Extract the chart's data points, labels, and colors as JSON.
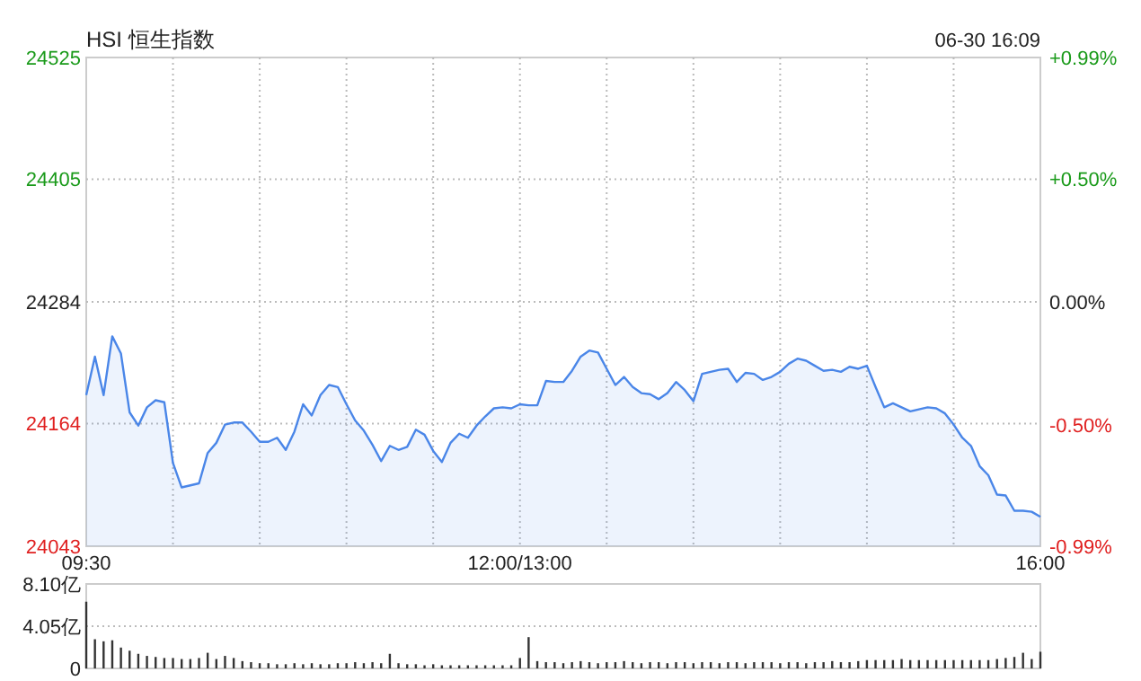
{
  "chart_data": [
    {
      "type": "area",
      "title": "HSI 恒生指数",
      "annotations": [
        "06-30 16:09"
      ],
      "color": "#4a86e8",
      "grid": true,
      "categories": [
        "09:30",
        null,
        null,
        null,
        null,
        null,
        null,
        null,
        null,
        null,
        null,
        null,
        null,
        null,
        null,
        null,
        null,
        null,
        null,
        null,
        null,
        null,
        null,
        null,
        null,
        null,
        null,
        null,
        null,
        null,
        null,
        null,
        null,
        null,
        null,
        null,
        null,
        null,
        null,
        null,
        null,
        null,
        null,
        null,
        null,
        null,
        null,
        null,
        null,
        null,
        "12:00/13:00",
        null,
        null,
        null,
        null,
        null,
        null,
        null,
        null,
        null,
        null,
        null,
        null,
        null,
        null,
        null,
        null,
        null,
        null,
        null,
        null,
        null,
        null,
        null,
        null,
        null,
        null,
        null,
        null,
        null,
        null,
        null,
        null,
        null,
        null,
        null,
        null,
        null,
        null,
        null,
        null,
        null,
        null,
        null,
        null,
        null,
        null,
        null,
        null,
        null,
        null,
        null,
        null,
        null,
        null,
        null,
        null,
        null,
        null,
        null,
        "16:00"
      ],
      "values": [
        24192,
        24230,
        24192,
        24250,
        24233,
        24175,
        24162,
        24180,
        24187,
        24185,
        24125,
        24101,
        24103,
        24105,
        24135,
        24145,
        24163,
        24165,
        24165,
        24156,
        24146,
        24146,
        24150,
        24138,
        24156,
        24183,
        24172,
        24192,
        24202,
        24200,
        24183,
        24167,
        24157,
        24143,
        24127,
        24142,
        24138,
        24141,
        24158,
        24153,
        24137,
        24126,
        24145,
        24154,
        24150,
        24162,
        24171,
        24179,
        24180,
        24179,
        24183,
        24182,
        24182,
        24206,
        24205,
        24205,
        24216,
        24230,
        24236,
        24234,
        24218,
        24202,
        24210,
        24200,
        24194,
        24193,
        24188,
        24194,
        24205,
        24197,
        24186,
        24213,
        24215,
        24217,
        24218,
        24205,
        24214,
        24213,
        24207,
        24210,
        24215,
        24223,
        24228,
        24226,
        24221,
        24216,
        24217,
        24215,
        24220,
        24218,
        24221,
        24200,
        24180,
        24184,
        24180,
        24176,
        24178,
        24180,
        24179,
        24174,
        24163,
        24150,
        24142,
        24122,
        24113,
        24094,
        24093,
        24078,
        24078,
        24077,
        24072
      ],
      "ylim": [
        24043,
        24525
      ],
      "yticks": [
        24043,
        24164,
        24284,
        24405,
        24525
      ],
      "y2lim": [
        -0.99,
        0.99
      ],
      "y2ticks": [
        {
          "value": -0.99,
          "label": "-0.99%"
        },
        {
          "value": -0.5,
          "label": "-0.50%"
        },
        {
          "value": 0,
          "label": "0.00%"
        },
        {
          "value": 0.5,
          "label": "+0.50%"
        },
        {
          "value": 0.99,
          "label": "+0.99%"
        }
      ]
    },
    {
      "type": "bar",
      "color": "#333333",
      "grid": "y",
      "tick_labels": "y",
      "categories": [
        null,
        null,
        null,
        null,
        null,
        null,
        null,
        null,
        null,
        null,
        null,
        null,
        null,
        null,
        null,
        null,
        null,
        null,
        null,
        null,
        null,
        null,
        null,
        null,
        null,
        null,
        null,
        null,
        null,
        null,
        null,
        null,
        null,
        null,
        null,
        null,
        null,
        null,
        null,
        null,
        null,
        null,
        null,
        null,
        null,
        null,
        null,
        null,
        null,
        null,
        null,
        null,
        null,
        null,
        null,
        null,
        null,
        null,
        null,
        null,
        null,
        null,
        null,
        null,
        null,
        null,
        null,
        null,
        null,
        null,
        null,
        null,
        null,
        null,
        null,
        null,
        null,
        null,
        null,
        null,
        null,
        null,
        null,
        null,
        null,
        null,
        null,
        null,
        null,
        null,
        null,
        null,
        null,
        null,
        null,
        null,
        null,
        null,
        null,
        null,
        null,
        null,
        null,
        null,
        null,
        null,
        null,
        null,
        null,
        null,
        null
      ],
      "values": [
        6.4,
        2.8,
        2.6,
        2.7,
        2.0,
        1.7,
        1.4,
        1.2,
        1.1,
        1.0,
        1.0,
        0.9,
        0.9,
        1.0,
        1.5,
        0.9,
        1.2,
        1.0,
        0.7,
        0.6,
        0.5,
        0.5,
        0.4,
        0.4,
        0.5,
        0.4,
        0.5,
        0.4,
        0.4,
        0.5,
        0.5,
        0.6,
        0.5,
        0.6,
        0.5,
        1.4,
        0.5,
        0.4,
        0.4,
        0.3,
        0.4,
        0.3,
        0.3,
        0.3,
        0.3,
        0.3,
        0.3,
        0.3,
        0.3,
        0.3,
        1.0,
        3.0,
        0.7,
        0.6,
        0.6,
        0.5,
        0.6,
        0.7,
        0.6,
        0.5,
        0.6,
        0.6,
        0.7,
        0.6,
        0.5,
        0.6,
        0.6,
        0.5,
        0.6,
        0.6,
        0.5,
        0.6,
        0.6,
        0.5,
        0.6,
        0.6,
        0.5,
        0.6,
        0.6,
        0.6,
        0.5,
        0.6,
        0.6,
        0.5,
        0.6,
        0.6,
        0.7,
        0.6,
        0.6,
        0.7,
        0.8,
        0.8,
        0.8,
        0.8,
        0.9,
        0.8,
        0.8,
        0.8,
        0.8,
        0.8,
        0.8,
        0.8,
        0.8,
        0.8,
        0.8,
        0.9,
        1.0,
        1.1,
        1.5,
        0.9,
        1.6
      ],
      "ylim": [
        0,
        8.1
      ],
      "yticks": [
        0,
        {
          "value": 4.05,
          "label": "4.05亿"
        },
        {
          "value": 8.1,
          "label": "8.10亿"
        }
      ]
    }
  ]
}
